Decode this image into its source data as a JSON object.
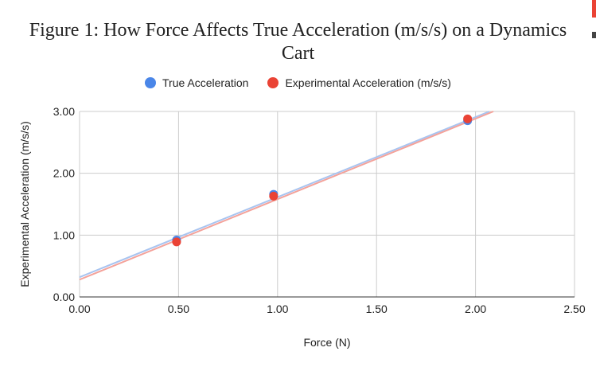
{
  "title": {
    "line1": "Figure 1: How Force Affects True Acceleration (m/s/s) on a Dynamics",
    "line2": "Cart"
  },
  "colors": {
    "true_series": "#4a86e8",
    "experimental_series": "#ea4335",
    "true_trend": "#a8c4f0",
    "experimental_trend": "#f4a29a",
    "grid": "#cccccc",
    "axis": "#333333"
  },
  "chart_data": {
    "type": "scatter",
    "title": "Figure 1: How Force Affects True Acceleration (m/s/s) on a Dynamics Cart",
    "xlabel": "Force (N)",
    "ylabel": "Experimental Acceleration (m/s/s)",
    "xlim": [
      0,
      2.5
    ],
    "ylim": [
      0,
      3
    ],
    "x_ticks": [
      "0.00",
      "0.50",
      "1.00",
      "1.50",
      "2.00",
      "2.50"
    ],
    "y_ticks": [
      "0.00",
      "1.00",
      "2.00",
      "3.00"
    ],
    "grid": true,
    "legend_position": "top",
    "series": [
      {
        "name": "True Acceleration",
        "points": [
          {
            "x": 0.49,
            "y": 0.92
          },
          {
            "x": 0.98,
            "y": 1.66
          },
          {
            "x": 1.96,
            "y": 2.85
          }
        ],
        "trendline": {
          "x0": 0.0,
          "y0": 0.32,
          "x1": 2.07,
          "y1": 3.0
        }
      },
      {
        "name": "Experimental Acceleration (m/s/s)",
        "points": [
          {
            "x": 0.49,
            "y": 0.89
          },
          {
            "x": 0.98,
            "y": 1.63
          },
          {
            "x": 1.96,
            "y": 2.88
          }
        ],
        "trendline": {
          "x0": 0.0,
          "y0": 0.28,
          "x1": 2.09,
          "y1": 3.0
        }
      }
    ]
  }
}
